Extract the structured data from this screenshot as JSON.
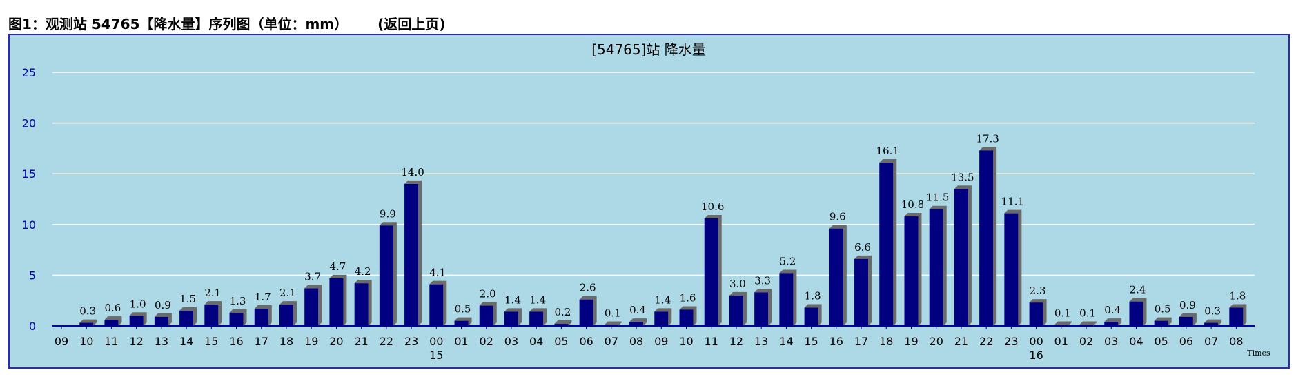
{
  "header": {
    "title": "图1：观测站 54765【降水量】序列图（单位：mm）",
    "back_link": "(返回上页)"
  },
  "colors": {
    "background": "#add8e6",
    "bar": "#000080",
    "bar_shadow": "#6b6b6b",
    "gridline": "#ffffff",
    "frame": "#2a2ab8",
    "y_tick_text": "#0000aa"
  },
  "chart_data": {
    "type": "bar",
    "title": "[54765]站 降水量",
    "xlabel": "Times",
    "ylabel": "",
    "ylim": [
      0,
      25
    ],
    "yticks": [
      0,
      5,
      10,
      15,
      20,
      25
    ],
    "grid": true,
    "categories": [
      "09",
      "10",
      "11",
      "12",
      "13",
      "14",
      "15",
      "16",
      "17",
      "18",
      "19",
      "20",
      "21",
      "22",
      "23",
      "00",
      "01",
      "02",
      "03",
      "04",
      "05",
      "06",
      "07",
      "08",
      "09",
      "10",
      "11",
      "12",
      "13",
      "14",
      "15",
      "16",
      "17",
      "18",
      "19",
      "20",
      "21",
      "22",
      "23",
      "00",
      "01",
      "02",
      "03",
      "04",
      "05",
      "06",
      "07",
      "08"
    ],
    "values": [
      null,
      0.3,
      0.6,
      1.0,
      0.9,
      1.5,
      2.1,
      1.3,
      1.7,
      2.1,
      3.7,
      4.7,
      4.2,
      9.9,
      14.0,
      4.1,
      0.5,
      2.0,
      1.4,
      1.4,
      0.2,
      2.6,
      0.1,
      0.4,
      1.4,
      1.6,
      10.6,
      3.0,
      3.3,
      5.2,
      1.8,
      9.6,
      6.6,
      16.1,
      10.8,
      11.5,
      13.5,
      17.3,
      11.1,
      2.3,
      0.1,
      0.1,
      0.4,
      2.4,
      0.5,
      0.9,
      0.3,
      1.8
    ],
    "value_labels": [
      "",
      "0.3",
      "0.6",
      "1.0",
      "0.9",
      "1.5",
      "2.1",
      "1.3",
      "1.7",
      "2.1",
      "3.7",
      "4.7",
      "4.2",
      "9.9",
      "14.0",
      "4.1",
      "0.5",
      "2.0",
      "1.4",
      "1.4",
      "0.2",
      "2.6",
      "0.1",
      "0.4",
      "1.4",
      "1.6",
      "10.6",
      "3.0",
      "3.3",
      "5.2",
      "1.8",
      "9.6",
      "6.6",
      "16.1",
      "10.8",
      "11.5",
      "13.5",
      "17.3",
      "11.1",
      "2.3",
      "0.1",
      "0.1",
      "0.4",
      "2.4",
      "0.5",
      "0.9",
      "0.3",
      "1.8"
    ],
    "day_markers": [
      {
        "category_index": 15,
        "label": "15"
      },
      {
        "category_index": 39,
        "label": "16"
      }
    ]
  }
}
